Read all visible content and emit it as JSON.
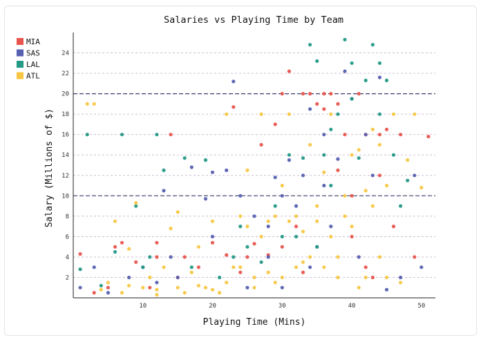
{
  "chart_data": {
    "type": "scatter",
    "title": "Salaries vs Playing Time by Team",
    "xlabel": "Playing Time (Mins)",
    "ylabel": "Salary (Millions of $)",
    "xlim": [
      0,
      52
    ],
    "ylim": [
      0,
      26
    ],
    "xticks": [
      10,
      20,
      30,
      40,
      50
    ],
    "yticks": [
      2,
      4,
      6,
      8,
      10,
      12,
      14,
      16,
      18,
      20,
      22,
      24
    ],
    "grid": "horizontal dashed",
    "legend_position": "top-left",
    "series": [
      {
        "name": "MIA",
        "color": "#e8554e",
        "points": [
          [
            1,
            4.3
          ],
          [
            3,
            0.5
          ],
          [
            5,
            1
          ],
          [
            6,
            5
          ],
          [
            7,
            5.4
          ],
          [
            9,
            3.5
          ],
          [
            11,
            1
          ],
          [
            12,
            4
          ],
          [
            14,
            16
          ],
          [
            15,
            2
          ],
          [
            18,
            3
          ],
          [
            20,
            5.4
          ],
          [
            23,
            18.7
          ],
          [
            24,
            2.5
          ],
          [
            25,
            4
          ],
          [
            26,
            5.3
          ],
          [
            27,
            15
          ],
          [
            28,
            4.2
          ],
          [
            29,
            17
          ],
          [
            30,
            20
          ],
          [
            31,
            22.2
          ],
          [
            32,
            7
          ],
          [
            33,
            20
          ],
          [
            34,
            20
          ],
          [
            35,
            19
          ],
          [
            36,
            18.5
          ],
          [
            37,
            20
          ],
          [
            38,
            12.5
          ],
          [
            39,
            16
          ],
          [
            40,
            10
          ],
          [
            41,
            20
          ],
          [
            42,
            16
          ],
          [
            43,
            2
          ],
          [
            44,
            16
          ],
          [
            45,
            16.5
          ],
          [
            46,
            7
          ],
          [
            47,
            16
          ],
          [
            49,
            4
          ],
          [
            51,
            15.8
          ],
          [
            38,
            19
          ],
          [
            36,
            20
          ],
          [
            40,
            6
          ],
          [
            42,
            3
          ],
          [
            30,
            5
          ],
          [
            22,
            4.2
          ],
          [
            12,
            5.4
          ],
          [
            16,
            4
          ],
          [
            33,
            2.5
          ],
          [
            44,
            12
          ]
        ]
      },
      {
        "name": "SAS",
        "color": "#5660b0",
        "points": [
          [
            1,
            1
          ],
          [
            3,
            3
          ],
          [
            5,
            0.5
          ],
          [
            8,
            2
          ],
          [
            10,
            3
          ],
          [
            12,
            1.5
          ],
          [
            13,
            10.5
          ],
          [
            15,
            2
          ],
          [
            17,
            12.8
          ],
          [
            19,
            9.7
          ],
          [
            20,
            12.3
          ],
          [
            22,
            12.5
          ],
          [
            23,
            21.2
          ],
          [
            24,
            10
          ],
          [
            25,
            1
          ],
          [
            26,
            8
          ],
          [
            28,
            4
          ],
          [
            29,
            11.8
          ],
          [
            30,
            10
          ],
          [
            31,
            13.5
          ],
          [
            32,
            9
          ],
          [
            33,
            12
          ],
          [
            34,
            18.5
          ],
          [
            35,
            5
          ],
          [
            36,
            11
          ],
          [
            37,
            7
          ],
          [
            38,
            13.6
          ],
          [
            39,
            22.2
          ],
          [
            40,
            19.5
          ],
          [
            41,
            4
          ],
          [
            42,
            16
          ],
          [
            43,
            12
          ],
          [
            44,
            21.6
          ],
          [
            45,
            0.8
          ],
          [
            47,
            2
          ],
          [
            49,
            12
          ],
          [
            50,
            3
          ],
          [
            34,
            3
          ],
          [
            28,
            7
          ],
          [
            14,
            4
          ],
          [
            20,
            6
          ],
          [
            36,
            16
          ],
          [
            30,
            1
          ]
        ]
      },
      {
        "name": "LAL",
        "color": "#239986",
        "points": [
          [
            1,
            2.8
          ],
          [
            2,
            16
          ],
          [
            4,
            1.2
          ],
          [
            6,
            4.5
          ],
          [
            7,
            16
          ],
          [
            9,
            9
          ],
          [
            10,
            3
          ],
          [
            11,
            4
          ],
          [
            12,
            16
          ],
          [
            13,
            12.5
          ],
          [
            16,
            13.7
          ],
          [
            17,
            3
          ],
          [
            19,
            13.5
          ],
          [
            21,
            2
          ],
          [
            23,
            4
          ],
          [
            24,
            7
          ],
          [
            27,
            3.5
          ],
          [
            29,
            9
          ],
          [
            31,
            14
          ],
          [
            32,
            6
          ],
          [
            33,
            13.7
          ],
          [
            34,
            24.8
          ],
          [
            35,
            23.2
          ],
          [
            36,
            14
          ],
          [
            37,
            16.5
          ],
          [
            38,
            18
          ],
          [
            39,
            25.3
          ],
          [
            40,
            23
          ],
          [
            41,
            13.7
          ],
          [
            42,
            21.3
          ],
          [
            43,
            24.8
          ],
          [
            44,
            23
          ],
          [
            45,
            21.3
          ],
          [
            46,
            14
          ],
          [
            47,
            9
          ],
          [
            48,
            11.5
          ],
          [
            35,
            5
          ],
          [
            40,
            19.5
          ],
          [
            37,
            11
          ],
          [
            30,
            6
          ],
          [
            25,
            5
          ],
          [
            44,
            18
          ]
        ]
      },
      {
        "name": "ATL",
        "color": "#f7c744",
        "points": [
          [
            2,
            19
          ],
          [
            3,
            19
          ],
          [
            4,
            0.8
          ],
          [
            5,
            1.5
          ],
          [
            6,
            7.5
          ],
          [
            7,
            0.5
          ],
          [
            8,
            4.8
          ],
          [
            9,
            9.3
          ],
          [
            10,
            1
          ],
          [
            11,
            2
          ],
          [
            12,
            0.3
          ],
          [
            13,
            3
          ],
          [
            14,
            6.8
          ],
          [
            15,
            8.4
          ],
          [
            16,
            0.5
          ],
          [
            17,
            2.5
          ],
          [
            18,
            5
          ],
          [
            19,
            1
          ],
          [
            20,
            7.5
          ],
          [
            21,
            0.5
          ],
          [
            22,
            18
          ],
          [
            23,
            3
          ],
          [
            24,
            8
          ],
          [
            25,
            12.5
          ],
          [
            26,
            2
          ],
          [
            27,
            18
          ],
          [
            28,
            7.5
          ],
          [
            29,
            1.5
          ],
          [
            30,
            11
          ],
          [
            31,
            18
          ],
          [
            32,
            8
          ],
          [
            33,
            3.5
          ],
          [
            34,
            15
          ],
          [
            35,
            9
          ],
          [
            36,
            12.3
          ],
          [
            37,
            18
          ],
          [
            38,
            2
          ],
          [
            39,
            8
          ],
          [
            40,
            14
          ],
          [
            41,
            1
          ],
          [
            42,
            10.5
          ],
          [
            43,
            9
          ],
          [
            44,
            15
          ],
          [
            45,
            2
          ],
          [
            46,
            18
          ],
          [
            47,
            1.5
          ],
          [
            48,
            13.5
          ],
          [
            49,
            18
          ],
          [
            50,
            10.8
          ],
          [
            15,
            1
          ],
          [
            18,
            1.2
          ],
          [
            20,
            0.8
          ],
          [
            22,
            1.5
          ],
          [
            24,
            3
          ],
          [
            26,
            1
          ],
          [
            28,
            2.5
          ],
          [
            30,
            2
          ],
          [
            32,
            3
          ],
          [
            34,
            4
          ],
          [
            36,
            3
          ],
          [
            38,
            4
          ],
          [
            40,
            7
          ],
          [
            42,
            2
          ],
          [
            44,
            4
          ],
          [
            12,
            0.8
          ],
          [
            8,
            1.2
          ],
          [
            25,
            7
          ],
          [
            27,
            6
          ],
          [
            29,
            8
          ],
          [
            31,
            7.5
          ],
          [
            33,
            6.5
          ],
          [
            35,
            7.5
          ],
          [
            37,
            6
          ],
          [
            39,
            10
          ],
          [
            41,
            14.5
          ],
          [
            43,
            16.5
          ],
          [
            45,
            11
          ]
        ]
      }
    ]
  }
}
